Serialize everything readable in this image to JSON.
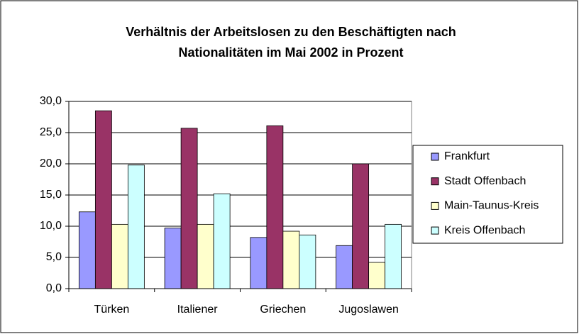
{
  "chart_data": {
    "type": "bar",
    "title": [
      "Verhältnis der Arbeitslosen zu den Beschäftigten nach",
      "Nationalitäten im Mai 2002 in Prozent"
    ],
    "categories": [
      "Türken",
      "Italiener",
      "Griechen",
      "Jugoslawen"
    ],
    "series": [
      {
        "name": "Frankfurt",
        "color": "#9999ff",
        "values": [
          12.3,
          9.7,
          8.2,
          6.9
        ]
      },
      {
        "name": "Stadt Offenbach",
        "color": "#993366",
        "values": [
          28.5,
          25.7,
          26.1,
          20.0
        ]
      },
      {
        "name": "Main-Taunus-Kreis",
        "color": "#ffffcc",
        "values": [
          10.3,
          10.3,
          9.2,
          4.2
        ]
      },
      {
        "name": "Kreis Offenbach",
        "color": "#ccffff",
        "values": [
          19.8,
          15.2,
          8.6,
          10.3
        ]
      }
    ],
    "ylim": [
      0,
      30
    ],
    "yticks": [
      {
        "value": 0,
        "label": "0,0"
      },
      {
        "value": 5,
        "label": "5,0"
      },
      {
        "value": 10,
        "label": "10,0"
      },
      {
        "value": 15,
        "label": "15,0"
      },
      {
        "value": 20,
        "label": "20,0"
      },
      {
        "value": 25,
        "label": "25,0"
      },
      {
        "value": 30,
        "label": "30,0"
      }
    ],
    "grid": true,
    "legend": "right"
  }
}
